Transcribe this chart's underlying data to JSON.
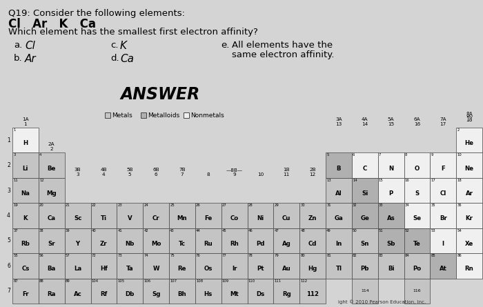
{
  "title_line1": "Q19: Consider the following elements:",
  "title_line2": "Cl   Ar   K   Ca",
  "title_line3": "Which element has the smallest first electron affinity?",
  "bg_color": "#d4d4d4",
  "elements": [
    {
      "sym": "H",
      "num": 1,
      "row": 1,
      "col": 1
    },
    {
      "sym": "He",
      "num": 2,
      "row": 1,
      "col": 18
    },
    {
      "sym": "Li",
      "num": 3,
      "row": 2,
      "col": 1
    },
    {
      "sym": "Be",
      "num": 4,
      "row": 2,
      "col": 2
    },
    {
      "sym": "B",
      "num": 5,
      "row": 2,
      "col": 13
    },
    {
      "sym": "C",
      "num": 6,
      "row": 2,
      "col": 14
    },
    {
      "sym": "N",
      "num": 7,
      "row": 2,
      "col": 15
    },
    {
      "sym": "O",
      "num": 8,
      "row": 2,
      "col": 16
    },
    {
      "sym": "F",
      "num": 9,
      "row": 2,
      "col": 17
    },
    {
      "sym": "Ne",
      "num": 10,
      "row": 2,
      "col": 18
    },
    {
      "sym": "Na",
      "num": 11,
      "row": 3,
      "col": 1
    },
    {
      "sym": "Mg",
      "num": 12,
      "row": 3,
      "col": 2
    },
    {
      "sym": "Al",
      "num": 13,
      "row": 3,
      "col": 13
    },
    {
      "sym": "Si",
      "num": 14,
      "row": 3,
      "col": 14
    },
    {
      "sym": "P",
      "num": 15,
      "row": 3,
      "col": 15
    },
    {
      "sym": "S",
      "num": 16,
      "row": 3,
      "col": 16
    },
    {
      "sym": "Cl",
      "num": 17,
      "row": 3,
      "col": 17
    },
    {
      "sym": "Ar",
      "num": 18,
      "row": 3,
      "col": 18
    },
    {
      "sym": "K",
      "num": 19,
      "row": 4,
      "col": 1
    },
    {
      "sym": "Ca",
      "num": 20,
      "row": 4,
      "col": 2
    },
    {
      "sym": "Sc",
      "num": 21,
      "row": 4,
      "col": 3
    },
    {
      "sym": "Ti",
      "num": 22,
      "row": 4,
      "col": 4
    },
    {
      "sym": "V",
      "num": 23,
      "row": 4,
      "col": 5
    },
    {
      "sym": "Cr",
      "num": 24,
      "row": 4,
      "col": 6
    },
    {
      "sym": "Mn",
      "num": 25,
      "row": 4,
      "col": 7
    },
    {
      "sym": "Fe",
      "num": 26,
      "row": 4,
      "col": 8
    },
    {
      "sym": "Co",
      "num": 27,
      "row": 4,
      "col": 9
    },
    {
      "sym": "Ni",
      "num": 28,
      "row": 4,
      "col": 10
    },
    {
      "sym": "Cu",
      "num": 29,
      "row": 4,
      "col": 11
    },
    {
      "sym": "Zn",
      "num": 30,
      "row": 4,
      "col": 12
    },
    {
      "sym": "Ga",
      "num": 31,
      "row": 4,
      "col": 13
    },
    {
      "sym": "Ge",
      "num": 32,
      "row": 4,
      "col": 14
    },
    {
      "sym": "As",
      "num": 33,
      "row": 4,
      "col": 15
    },
    {
      "sym": "Se",
      "num": 34,
      "row": 4,
      "col": 16
    },
    {
      "sym": "Br",
      "num": 35,
      "row": 4,
      "col": 17
    },
    {
      "sym": "Kr",
      "num": 36,
      "row": 4,
      "col": 18
    },
    {
      "sym": "Rb",
      "num": 37,
      "row": 5,
      "col": 1
    },
    {
      "sym": "Sr",
      "num": 38,
      "row": 5,
      "col": 2
    },
    {
      "sym": "Y",
      "num": 39,
      "row": 5,
      "col": 3
    },
    {
      "sym": "Zr",
      "num": 40,
      "row": 5,
      "col": 4
    },
    {
      "sym": "Nb",
      "num": 41,
      "row": 5,
      "col": 5
    },
    {
      "sym": "Mo",
      "num": 42,
      "row": 5,
      "col": 6
    },
    {
      "sym": "Tc",
      "num": 43,
      "row": 5,
      "col": 7
    },
    {
      "sym": "Ru",
      "num": 44,
      "row": 5,
      "col": 8
    },
    {
      "sym": "Rh",
      "num": 45,
      "row": 5,
      "col": 9
    },
    {
      "sym": "Pd",
      "num": 46,
      "row": 5,
      "col": 10
    },
    {
      "sym": "Ag",
      "num": 47,
      "row": 5,
      "col": 11
    },
    {
      "sym": "Cd",
      "num": 48,
      "row": 5,
      "col": 12
    },
    {
      "sym": "In",
      "num": 49,
      "row": 5,
      "col": 13
    },
    {
      "sym": "Sn",
      "num": 50,
      "row": 5,
      "col": 14
    },
    {
      "sym": "Sb",
      "num": 51,
      "row": 5,
      "col": 15
    },
    {
      "sym": "Te",
      "num": 52,
      "row": 5,
      "col": 16
    },
    {
      "sym": "I",
      "num": 53,
      "row": 5,
      "col": 17
    },
    {
      "sym": "Xe",
      "num": 54,
      "row": 5,
      "col": 18
    },
    {
      "sym": "Cs",
      "num": 55,
      "row": 6,
      "col": 1
    },
    {
      "sym": "Ba",
      "num": 56,
      "row": 6,
      "col": 2
    },
    {
      "sym": "La",
      "num": 57,
      "row": 6,
      "col": 3
    },
    {
      "sym": "Hf",
      "num": 72,
      "row": 6,
      "col": 4
    },
    {
      "sym": "Ta",
      "num": 73,
      "row": 6,
      "col": 5
    },
    {
      "sym": "W",
      "num": 74,
      "row": 6,
      "col": 6
    },
    {
      "sym": "Re",
      "num": 75,
      "row": 6,
      "col": 7
    },
    {
      "sym": "Os",
      "num": 76,
      "row": 6,
      "col": 8
    },
    {
      "sym": "Ir",
      "num": 77,
      "row": 6,
      "col": 9
    },
    {
      "sym": "Pt",
      "num": 78,
      "row": 6,
      "col": 10
    },
    {
      "sym": "Au",
      "num": 79,
      "row": 6,
      "col": 11
    },
    {
      "sym": "Hg",
      "num": 80,
      "row": 6,
      "col": 12
    },
    {
      "sym": "Tl",
      "num": 81,
      "row": 6,
      "col": 13
    },
    {
      "sym": "Pb",
      "num": 82,
      "row": 6,
      "col": 14
    },
    {
      "sym": "Bi",
      "num": 83,
      "row": 6,
      "col": 15
    },
    {
      "sym": "Po",
      "num": 84,
      "row": 6,
      "col": 16
    },
    {
      "sym": "At",
      "num": 85,
      "row": 6,
      "col": 17
    },
    {
      "sym": "Rn",
      "num": 86,
      "row": 6,
      "col": 18
    },
    {
      "sym": "Fr",
      "num": 87,
      "row": 7,
      "col": 1
    },
    {
      "sym": "Ra",
      "num": 88,
      "row": 7,
      "col": 2
    },
    {
      "sym": "Ac",
      "num": 89,
      "row": 7,
      "col": 3
    },
    {
      "sym": "Rf",
      "num": 104,
      "row": 7,
      "col": 4
    },
    {
      "sym": "Db",
      "num": 105,
      "row": 7,
      "col": 5
    },
    {
      "sym": "Sg",
      "num": 106,
      "row": 7,
      "col": 6
    },
    {
      "sym": "Bh",
      "num": 107,
      "row": 7,
      "col": 7
    },
    {
      "sym": "Hs",
      "num": 108,
      "row": 7,
      "col": 8
    },
    {
      "sym": "Mt",
      "num": 109,
      "row": 7,
      "col": 9
    },
    {
      "sym": "Ds",
      "num": 110,
      "row": 7,
      "col": 10
    },
    {
      "sym": "Rg",
      "num": 111,
      "row": 7,
      "col": 11
    },
    {
      "sym": "112",
      "num": 112,
      "row": 7,
      "col": 12
    },
    {
      "sym": "114",
      "num": 114,
      "row": 7,
      "col": 14,
      "num_only": true
    },
    {
      "sym": "116",
      "num": 116,
      "row": 7,
      "col": 16,
      "num_only": true
    }
  ],
  "metals": [
    3,
    4,
    11,
    12,
    13,
    19,
    20,
    21,
    22,
    23,
    24,
    25,
    26,
    27,
    28,
    29,
    30,
    31,
    37,
    38,
    39,
    40,
    41,
    42,
    43,
    44,
    45,
    46,
    47,
    48,
    49,
    50,
    55,
    56,
    57,
    72,
    73,
    74,
    75,
    76,
    77,
    78,
    79,
    80,
    81,
    82,
    83,
    84,
    87,
    88,
    89,
    104,
    105,
    106,
    107,
    108,
    109,
    110,
    111,
    112,
    114,
    116
  ],
  "metalloids": [
    5,
    14,
    32,
    33,
    51,
    52,
    85
  ],
  "nonmetals": [
    1,
    2,
    6,
    7,
    8,
    9,
    10,
    15,
    16,
    17,
    18,
    34,
    35,
    36,
    53,
    54,
    86
  ]
}
